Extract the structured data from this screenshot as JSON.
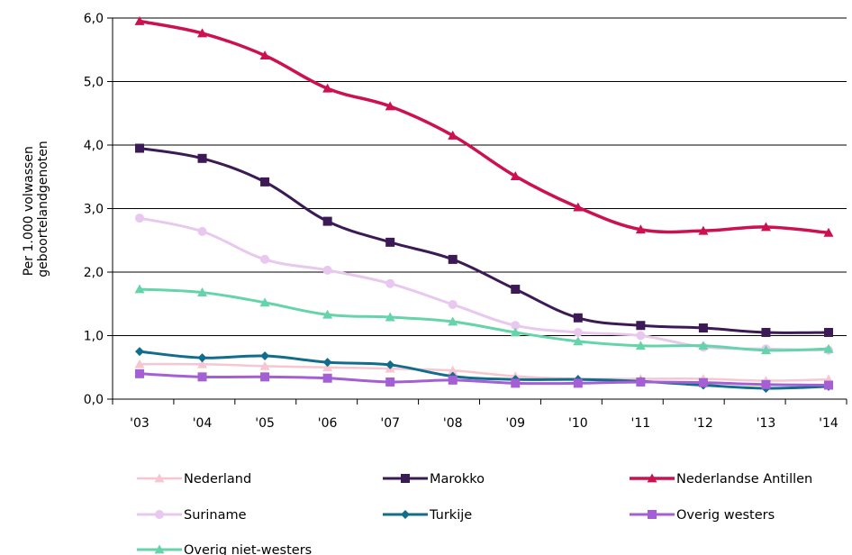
{
  "chart_data": {
    "type": "line",
    "ylabel_lines": [
      "Per 1.000 volwassen",
      "geboortelandgenoten"
    ],
    "categories": [
      "'03",
      "'04",
      "'05",
      "'06",
      "'07",
      "'08",
      "'09",
      "'10",
      "'11",
      "'12",
      "'13",
      "'14"
    ],
    "yticks": [
      "0,0",
      "1,0",
      "2,0",
      "3,0",
      "4,0",
      "5,0",
      "6,0"
    ],
    "ylim": [
      0,
      6
    ],
    "grid": true,
    "legend_position": "bottom",
    "series": [
      {
        "name": "Nederland",
        "color": "#f7c6d0",
        "marker": "triangle",
        "width": 2.5,
        "values": [
          0.55,
          0.55,
          0.52,
          0.5,
          0.48,
          0.45,
          0.36,
          0.32,
          0.32,
          0.32,
          0.29,
          0.31
        ]
      },
      {
        "name": "Marokko",
        "color": "#3c1a55",
        "marker": "square",
        "width": 3,
        "values": [
          3.95,
          3.79,
          3.42,
          2.8,
          2.47,
          2.2,
          1.73,
          1.28,
          1.16,
          1.12,
          1.05,
          1.05
        ]
      },
      {
        "name": "Nederlandse Antillen",
        "color": "#cc1151",
        "marker": "triangle",
        "width": 3.5,
        "values": [
          5.95,
          5.76,
          5.41,
          4.89,
          4.61,
          4.15,
          3.51,
          3.02,
          2.67,
          2.65,
          2.71,
          2.62
        ]
      },
      {
        "name": "Suriname",
        "color": "#e8c8ee",
        "marker": "circle",
        "width": 3,
        "values": [
          2.85,
          2.64,
          2.2,
          2.03,
          1.82,
          1.49,
          1.16,
          1.05,
          1.0,
          0.82,
          0.79,
          0.77
        ]
      },
      {
        "name": "Turkije",
        "color": "#116d8c",
        "marker": "diamond",
        "width": 3,
        "values": [
          0.75,
          0.65,
          0.68,
          0.58,
          0.54,
          0.36,
          0.31,
          0.31,
          0.28,
          0.22,
          0.17,
          0.2
        ]
      },
      {
        "name": "Overig westers",
        "color": "#a45fd5",
        "marker": "square",
        "width": 3,
        "values": [
          0.4,
          0.35,
          0.35,
          0.33,
          0.27,
          0.3,
          0.25,
          0.25,
          0.27,
          0.26,
          0.23,
          0.22
        ]
      },
      {
        "name": "Overig niet-westers",
        "color": "#66d4aa",
        "marker": "triangle",
        "width": 3,
        "values": [
          1.73,
          1.68,
          1.52,
          1.33,
          1.29,
          1.22,
          1.05,
          0.91,
          0.84,
          0.84,
          0.77,
          0.79
        ]
      }
    ]
  }
}
